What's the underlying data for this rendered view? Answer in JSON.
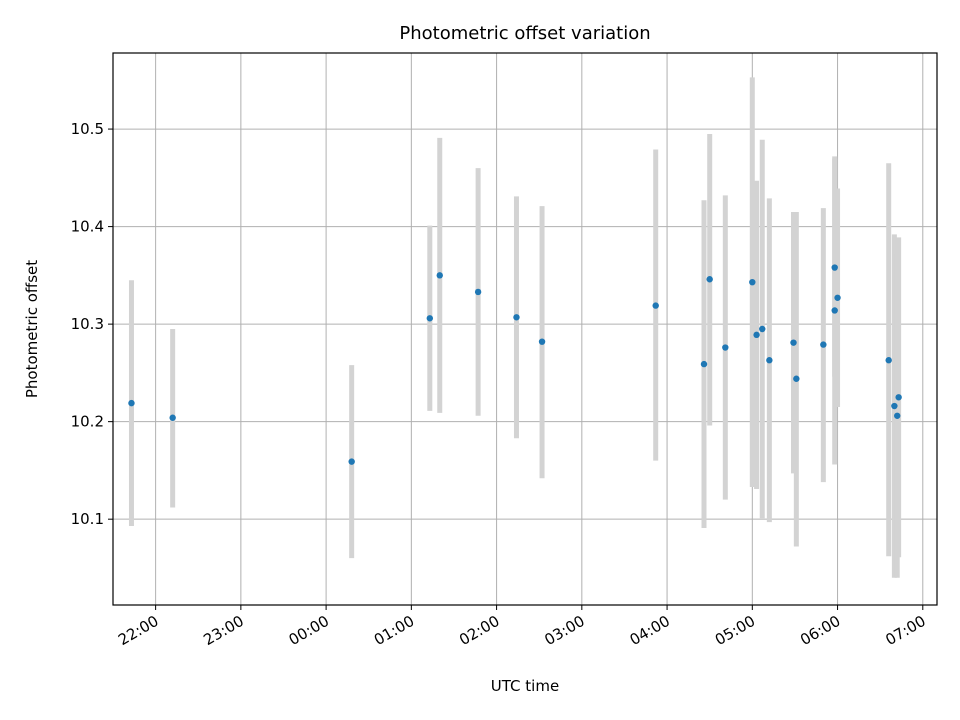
{
  "chart_data": {
    "type": "scatter",
    "title": "Photometric offset variation",
    "xlabel": "UTC time",
    "ylabel": "Photometric offset",
    "x_ticks": [
      "22:00",
      "23:00",
      "00:00",
      "01:00",
      "02:00",
      "03:00",
      "04:00",
      "05:00",
      "06:00",
      "07:00"
    ],
    "y_ticks": [
      "10.1",
      "10.2",
      "10.3",
      "10.4",
      "10.5"
    ],
    "xlim": [
      "21:30",
      "07:10"
    ],
    "ylim": [
      10.012,
      10.578
    ],
    "grid": true,
    "colors": {
      "marker": "#1f77b4",
      "errorbar": "#d3d3d3",
      "grid": "#b0b0b0"
    },
    "series": [
      {
        "points": [
          {
            "x": "21:43",
            "y": 10.219,
            "low": 10.093,
            "high": 10.345
          },
          {
            "x": "22:12",
            "y": 10.204,
            "low": 10.112,
            "high": 10.295
          },
          {
            "x": "00:18",
            "y": 10.159,
            "low": 10.06,
            "high": 10.258
          },
          {
            "x": "01:13",
            "y": 10.306,
            "low": 10.211,
            "high": 10.401
          },
          {
            "x": "01:20",
            "y": 10.35,
            "low": 10.209,
            "high": 10.491
          },
          {
            "x": "01:47",
            "y": 10.333,
            "low": 10.206,
            "high": 10.46
          },
          {
            "x": "02:14",
            "y": 10.307,
            "low": 10.183,
            "high": 10.431
          },
          {
            "x": "02:32",
            "y": 10.282,
            "low": 10.142,
            "high": 10.421
          },
          {
            "x": "03:52",
            "y": 10.319,
            "low": 10.16,
            "high": 10.479
          },
          {
            "x": "04:26",
            "y": 10.259,
            "low": 10.091,
            "high": 10.427
          },
          {
            "x": "04:30",
            "y": 10.346,
            "low": 10.196,
            "high": 10.495
          },
          {
            "x": "04:41",
            "y": 10.276,
            "low": 10.12,
            "high": 10.432
          },
          {
            "x": "05:00",
            "y": 10.343,
            "low": 10.133,
            "high": 10.553
          },
          {
            "x": "05:03",
            "y": 10.289,
            "low": 10.131,
            "high": 10.447
          },
          {
            "x": "05:07",
            "y": 10.295,
            "low": 10.101,
            "high": 10.489
          },
          {
            "x": "05:12",
            "y": 10.263,
            "low": 10.097,
            "high": 10.429
          },
          {
            "x": "05:29",
            "y": 10.281,
            "low": 10.147,
            "high": 10.415
          },
          {
            "x": "05:31",
            "y": 10.244,
            "low": 10.072,
            "high": 10.415
          },
          {
            "x": "05:50",
            "y": 10.279,
            "low": 10.138,
            "high": 10.419
          },
          {
            "x": "05:58",
            "y": 10.358,
            "low": 10.246,
            "high": 10.47
          },
          {
            "x": "05:58",
            "y": 10.314,
            "low": 10.156,
            "high": 10.472
          },
          {
            "x": "06:00",
            "y": 10.327,
            "low": 10.215,
            "high": 10.439
          },
          {
            "x": "06:36",
            "y": 10.263,
            "low": 10.062,
            "high": 10.465
          },
          {
            "x": "06:40",
            "y": 10.216,
            "low": 10.04,
            "high": 10.392
          },
          {
            "x": "06:42",
            "y": 10.206,
            "low": 10.04,
            "high": 10.372
          },
          {
            "x": "06:43",
            "y": 10.225,
            "low": 10.061,
            "high": 10.389
          }
        ]
      }
    ]
  }
}
